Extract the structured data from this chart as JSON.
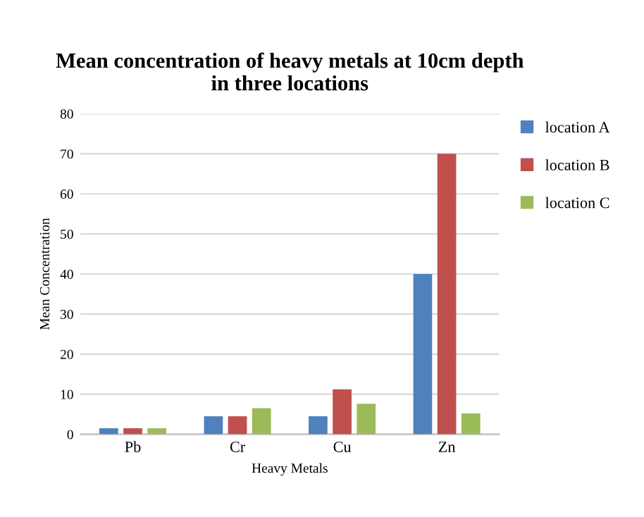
{
  "chart_data": {
    "type": "bar",
    "title": "Mean concentration of heavy metals at 10cm depth\nin three locations",
    "xlabel": "Heavy Metals",
    "ylabel": "Mean Concentration",
    "categories": [
      "Pb",
      "Cr",
      "Cu",
      "Zn"
    ],
    "series": [
      {
        "name": "location A",
        "color": "#4f81bd",
        "values": [
          1.5,
          4.5,
          4.5,
          40
        ]
      },
      {
        "name": "location B",
        "color": "#c0504d",
        "values": [
          1.5,
          4.5,
          11.2,
          70
        ]
      },
      {
        "name": "location C",
        "color": "#9bbb59",
        "values": [
          1.5,
          6.5,
          7.6,
          5.2
        ]
      }
    ],
    "ylim": [
      0,
      80
    ],
    "yticks": [
      0,
      10,
      20,
      30,
      40,
      50,
      60,
      70,
      80
    ],
    "grid": "y",
    "legend": "right"
  }
}
